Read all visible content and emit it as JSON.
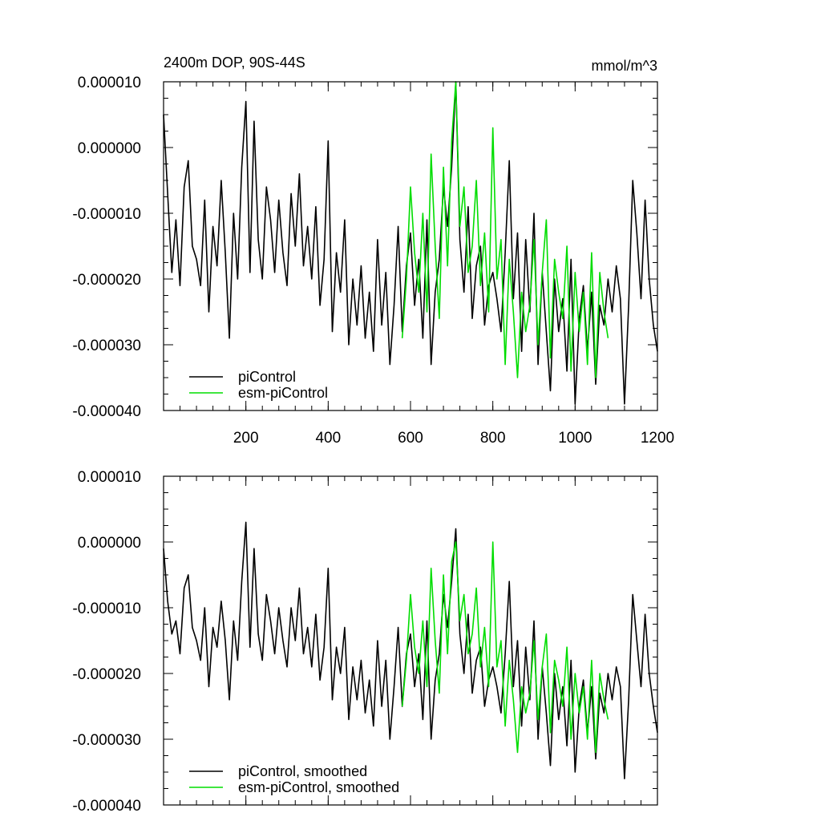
{
  "chart_data": [
    {
      "type": "line",
      "title_left": "2400m DOP, 90S-44S",
      "title_right": "mmol/m^3",
      "xlim": [
        0,
        1200
      ],
      "ylim": [
        -4e-05,
        1e-05
      ],
      "x_ticks": [
        200,
        400,
        600,
        800,
        1000,
        1200
      ],
      "x_tick_labels": [
        "200",
        "400",
        "600",
        "800",
        "1000",
        "1200"
      ],
      "y_ticks": [
        1e-05,
        0.0,
        -1e-05,
        -2e-05,
        -3e-05,
        -4e-05
      ],
      "y_tick_labels": [
        "0.000010",
        "0.000000",
        "-0.000010",
        "-0.000020",
        "-0.000030",
        "-0.000040"
      ],
      "legend": [
        {
          "label": "piControl",
          "color": "#000000"
        },
        {
          "label": "esm-piControl",
          "color": "#00dd00"
        }
      ],
      "series": [
        {
          "name": "piControl",
          "color": "#000000",
          "x": [
            0,
            10,
            20,
            30,
            40,
            50,
            60,
            70,
            80,
            90,
            100,
            110,
            120,
            130,
            140,
            150,
            160,
            170,
            180,
            190,
            200,
            210,
            220,
            230,
            240,
            250,
            260,
            270,
            280,
            290,
            300,
            310,
            320,
            330,
            340,
            350,
            360,
            370,
            380,
            390,
            400,
            410,
            420,
            430,
            440,
            450,
            460,
            470,
            480,
            490,
            500,
            510,
            520,
            530,
            540,
            550,
            560,
            570,
            580,
            590,
            600,
            610,
            620,
            630,
            640,
            650,
            660,
            670,
            680,
            690,
            700,
            710,
            720,
            730,
            740,
            750,
            760,
            770,
            780,
            790,
            800,
            810,
            820,
            830,
            840,
            850,
            860,
            870,
            880,
            890,
            900,
            910,
            920,
            930,
            940,
            950,
            960,
            970,
            980,
            990,
            1000,
            1010,
            1020,
            1030,
            1040,
            1050,
            1060,
            1070,
            1080,
            1090,
            1100,
            1110,
            1120,
            1130,
            1140,
            1150,
            1160,
            1170,
            1180,
            1190,
            1200
          ],
          "y": [
            5e-06,
            -7e-06,
            -1.9e-05,
            -1.1e-05,
            -2.1e-05,
            -6e-06,
            -2e-06,
            -1.5e-05,
            -1.7e-05,
            -2.1e-05,
            -8e-06,
            -2.5e-05,
            -1.2e-05,
            -1.8e-05,
            -5e-06,
            -1.6e-05,
            -2.9e-05,
            -1e-05,
            -2e-05,
            -3e-06,
            7e-06,
            -1.9e-05,
            4e-06,
            -1.4e-05,
            -2e-05,
            -6e-06,
            -1.1e-05,
            -1.9e-05,
            -8e-06,
            -1.6e-05,
            -2.1e-05,
            -7e-06,
            -1.5e-05,
            -4e-06,
            -1.8e-05,
            -1.2e-05,
            -2e-05,
            -9e-06,
            -2.4e-05,
            -1.7e-05,
            1e-06,
            -2.8e-05,
            -1.6e-05,
            -2.2e-05,
            -1.1e-05,
            -3e-05,
            -2e-05,
            -2.7e-05,
            -1.8e-05,
            -2.9e-05,
            -2.2e-05,
            -3.1e-05,
            -1.4e-05,
            -2.7e-05,
            -1.9e-05,
            -3.3e-05,
            -2.4e-05,
            -1.2e-05,
            -2.8e-05,
            -1.8e-05,
            -1.3e-05,
            -2.4e-05,
            -1.7e-05,
            -2.9e-05,
            -1.1e-05,
            -3.3e-05,
            -2.2e-05,
            -1.7e-05,
            -6e-06,
            -1.2e-05,
            -3e-06,
            1e-05,
            -1.4e-05,
            -2.2e-05,
            -9e-06,
            -2.6e-05,
            -1.8e-05,
            -1.5e-05,
            -2.7e-05,
            -2.1e-05,
            -1.9e-05,
            -2.3e-05,
            -2.8e-05,
            -1.6e-05,
            -2e-06,
            -2.3e-05,
            -1.3e-05,
            -3.1e-05,
            -1.4e-05,
            -2.5e-05,
            -1e-05,
            -3.3e-05,
            -1.9e-05,
            -2.8e-05,
            -3.7e-05,
            -2e-05,
            -2.8e-05,
            -2.3e-05,
            -3.4e-05,
            -1.7e-05,
            -3.9e-05,
            -2.6e-05,
            -2.1e-05,
            -3.1e-05,
            -2.2e-05,
            -3.6e-05,
            -2.4e-05,
            -2.7e-05,
            -2e-05,
            -2.5e-05,
            -1.8e-05,
            -2.3e-05,
            -3.9e-05,
            -2.4e-05,
            -5e-06,
            -1.3e-05,
            -2.3e-05,
            -8e-06,
            -2e-05,
            -2.7e-05,
            -3.1e-05
          ]
        },
        {
          "name": "esm-piControl",
          "color": "#00dd00",
          "x": [
            580,
            590,
            600,
            610,
            620,
            630,
            640,
            650,
            660,
            670,
            680,
            690,
            700,
            710,
            720,
            730,
            740,
            750,
            760,
            770,
            780,
            790,
            800,
            810,
            820,
            830,
            840,
            850,
            860,
            870,
            880,
            890,
            900,
            910,
            920,
            930,
            940,
            950,
            960,
            970,
            980,
            990,
            1000,
            1010,
            1020,
            1030,
            1040,
            1050,
            1060,
            1070,
            1080
          ],
          "y": [
            -2.9e-05,
            -2e-05,
            -6e-06,
            -1.6e-05,
            -2.2e-05,
            -1e-05,
            -2.5e-05,
            -1e-06,
            -1.5e-05,
            -2.6e-05,
            -3e-06,
            -1.8e-05,
            1e-06,
            1e-05,
            -1.2e-05,
            -6e-06,
            -1.9e-05,
            -1.5e-05,
            -5e-06,
            -2.1e-05,
            -1.3e-05,
            -2.5e-05,
            3e-06,
            -2e-05,
            -1.4e-05,
            -3.3e-05,
            -1.7e-05,
            -2.5e-05,
            -3.5e-05,
            -2.2e-05,
            -2.8e-05,
            -2.4e-05,
            -1.4e-05,
            -3e-05,
            -1.9e-05,
            -1.1e-05,
            -3.2e-05,
            -1.7e-05,
            -2.2e-05,
            -2.6e-05,
            -1.5e-05,
            -3.4e-05,
            -1.9e-05,
            -2.8e-05,
            -2.2e-05,
            -3.3e-05,
            -1.6e-05,
            -3.5e-05,
            -1.9e-05,
            -2.5e-05,
            -2.9e-05
          ]
        }
      ]
    },
    {
      "type": "line",
      "xlim": [
        0,
        1200
      ],
      "ylim": [
        -4e-05,
        1e-05
      ],
      "x_ticks": [
        200,
        400,
        600,
        800,
        1000,
        1200
      ],
      "y_ticks": [
        1e-05,
        0.0,
        -1e-05,
        -2e-05,
        -3e-05,
        -4e-05
      ],
      "y_tick_labels": [
        "0.000010",
        "0.000000",
        "-0.000010",
        "-0.000020",
        "-0.000030",
        "-0.000040"
      ],
      "legend": [
        {
          "label": "piControl, smoothed",
          "color": "#000000"
        },
        {
          "label": "esm-piControl, smoothed",
          "color": "#00dd00"
        }
      ],
      "series": [
        {
          "name": "piControl, smoothed",
          "color": "#000000",
          "x": [
            0,
            10,
            20,
            30,
            40,
            50,
            60,
            70,
            80,
            90,
            100,
            110,
            120,
            130,
            140,
            150,
            160,
            170,
            180,
            190,
            200,
            210,
            220,
            230,
            240,
            250,
            260,
            270,
            280,
            290,
            300,
            310,
            320,
            330,
            340,
            350,
            360,
            370,
            380,
            390,
            400,
            410,
            420,
            430,
            440,
            450,
            460,
            470,
            480,
            490,
            500,
            510,
            520,
            530,
            540,
            550,
            560,
            570,
            580,
            590,
            600,
            610,
            620,
            630,
            640,
            650,
            660,
            670,
            680,
            690,
            700,
            710,
            720,
            730,
            740,
            750,
            760,
            770,
            780,
            790,
            800,
            810,
            820,
            830,
            840,
            850,
            860,
            870,
            880,
            890,
            900,
            910,
            920,
            930,
            940,
            950,
            960,
            970,
            980,
            990,
            1000,
            1010,
            1020,
            1030,
            1040,
            1050,
            1060,
            1070,
            1080,
            1090,
            1100,
            1110,
            1120,
            1130,
            1140,
            1150,
            1160,
            1170,
            1180,
            1190,
            1200
          ],
          "y": [
            -1e-06,
            -9e-06,
            -1.4e-05,
            -1.2e-05,
            -1.7e-05,
            -7e-06,
            -5e-06,
            -1.3e-05,
            -1.5e-05,
            -1.8e-05,
            -1e-05,
            -2.2e-05,
            -1.3e-05,
            -1.6e-05,
            -9e-06,
            -1.5e-05,
            -2.4e-05,
            -1.2e-05,
            -1.8e-05,
            -6e-06,
            3e-06,
            -1.6e-05,
            -1e-06,
            -1.4e-05,
            -1.8e-05,
            -8e-06,
            -1.2e-05,
            -1.7e-05,
            -1e-05,
            -1.5e-05,
            -1.9e-05,
            -1e-05,
            -1.5e-05,
            -7e-06,
            -1.7e-05,
            -1.3e-05,
            -1.9e-05,
            -1.1e-05,
            -2.1e-05,
            -1.6e-05,
            -4e-06,
            -2.4e-05,
            -1.6e-05,
            -2e-05,
            -1.3e-05,
            -2.7e-05,
            -1.9e-05,
            -2.4e-05,
            -1.8e-05,
            -2.6e-05,
            -2.1e-05,
            -2.8e-05,
            -1.5e-05,
            -2.5e-05,
            -1.8e-05,
            -3e-05,
            -2.2e-05,
            -1.3e-05,
            -2.5e-05,
            -1.7e-05,
            -1.4e-05,
            -2.2e-05,
            -1.7e-05,
            -2.7e-05,
            -1.2e-05,
            -3e-05,
            -2.1e-05,
            -1.7e-05,
            -8e-06,
            -1.3e-05,
            -6e-06,
            2e-06,
            -1.4e-05,
            -2e-05,
            -1.1e-05,
            -2.3e-05,
            -1.8e-05,
            -1.6e-05,
            -2.5e-05,
            -2.1e-05,
            -1.9e-05,
            -2.2e-05,
            -2.6e-05,
            -1.7e-05,
            -6e-06,
            -2.2e-05,
            -1.5e-05,
            -2.8e-05,
            -1.6e-05,
            -2.4e-05,
            -1.2e-05,
            -3e-05,
            -1.9e-05,
            -2.6e-05,
            -3.4e-05,
            -2e-05,
            -2.7e-05,
            -2.2e-05,
            -3.1e-05,
            -1.8e-05,
            -3.5e-05,
            -2.5e-05,
            -2.1e-05,
            -2.9e-05,
            -2.2e-05,
            -3.3e-05,
            -2.3e-05,
            -2.6e-05,
            -2e-05,
            -2.4e-05,
            -1.9e-05,
            -2.2e-05,
            -3.6e-05,
            -2.4e-05,
            -8e-06,
            -1.5e-05,
            -2.2e-05,
            -1.1e-05,
            -2e-05,
            -2.5e-05,
            -2.9e-05
          ]
        },
        {
          "name": "esm-piControl, smoothed",
          "color": "#00dd00",
          "x": [
            580,
            590,
            600,
            610,
            620,
            630,
            640,
            650,
            660,
            670,
            680,
            690,
            700,
            710,
            720,
            730,
            740,
            750,
            760,
            770,
            780,
            790,
            800,
            810,
            820,
            830,
            840,
            850,
            860,
            870,
            880,
            890,
            900,
            910,
            920,
            930,
            940,
            950,
            960,
            970,
            980,
            990,
            1000,
            1010,
            1020,
            1030,
            1040,
            1050,
            1060,
            1070,
            1080
          ],
          "y": [
            -2.5e-05,
            -1.8e-05,
            -8e-06,
            -1.6e-05,
            -2e-05,
            -1.2e-05,
            -2.2e-05,
            -4e-06,
            -1.5e-05,
            -2.3e-05,
            -5e-06,
            -1.7e-05,
            -3e-06,
            0.0,
            -1.2e-05,
            -8e-06,
            -1.7e-05,
            -1.4e-05,
            -7e-06,
            -1.9e-05,
            -1.3e-05,
            -2.2e-05,
            0.0,
            -1.9e-05,
            -1.5e-05,
            -2.8e-05,
            -1.8e-05,
            -2.4e-05,
            -3.2e-05,
            -2.2e-05,
            -2.6e-05,
            -2.3e-05,
            -1.5e-05,
            -2.7e-05,
            -1.9e-05,
            -1.4e-05,
            -2.9e-05,
            -1.8e-05,
            -2.1e-05,
            -2.5e-05,
            -1.6e-05,
            -3e-05,
            -2e-05,
            -2.6e-05,
            -2.2e-05,
            -3e-05,
            -1.8e-05,
            -3.2e-05,
            -2e-05,
            -2.4e-05,
            -2.7e-05
          ]
        }
      ]
    }
  ]
}
